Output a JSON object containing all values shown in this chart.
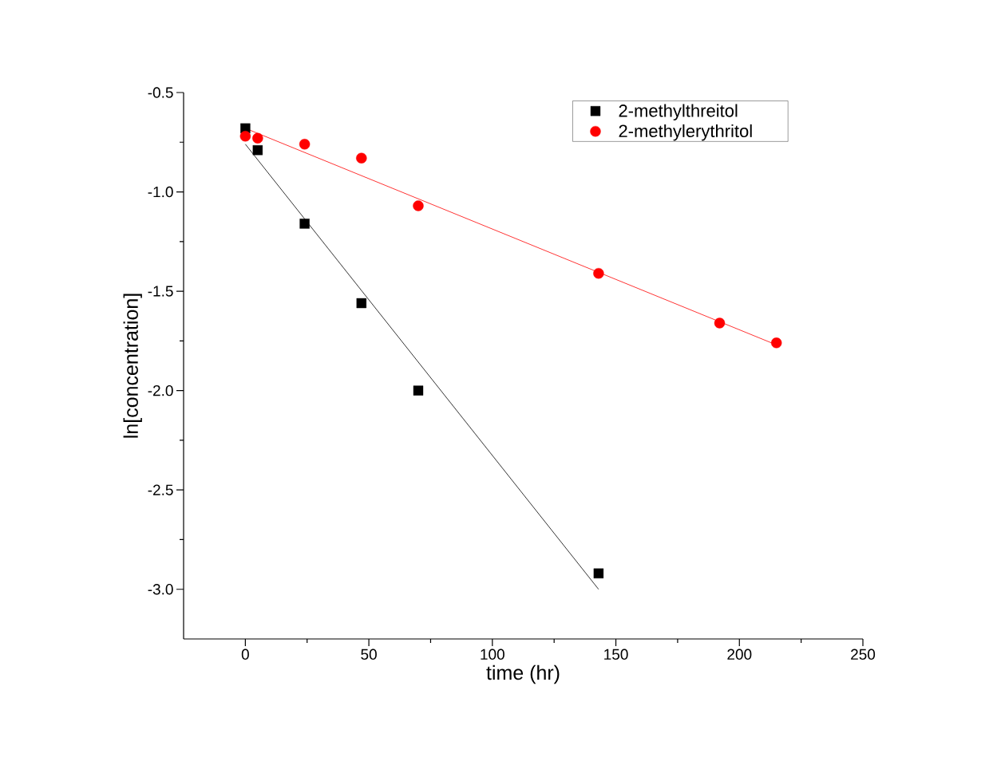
{
  "chart_data": {
    "type": "scatter",
    "xlabel": "time (hr)",
    "ylabel": "ln[concentration]",
    "xlim": [
      -25,
      250
    ],
    "ylim": [
      -3.25,
      -0.5
    ],
    "xticks": [
      0,
      50,
      100,
      150,
      200,
      250
    ],
    "yticks": [
      {
        "value": -3.0,
        "label": "-3.0"
      },
      -2.5,
      {
        "value": -2.0,
        "label": "-2.0"
      },
      -1.5,
      {
        "value": -1.0,
        "label": "-1.0"
      },
      -0.5
    ],
    "legend": "top right",
    "grid": false,
    "series": [
      {
        "name": "2-methylthreitol",
        "color": "#000000",
        "marker": "square",
        "x": [
          0,
          5,
          24,
          47,
          70,
          143
        ],
        "values": [
          -0.68,
          -0.79,
          -1.16,
          -1.56,
          -2.0,
          -2.92
        ]
      },
      {
        "name": "2-methylerythritol",
        "color": "#ff0000",
        "marker": "circle",
        "x": [
          0,
          5,
          24,
          47,
          70,
          143,
          192,
          215
        ],
        "values": [
          -0.72,
          -0.73,
          -0.76,
          -0.83,
          -1.07,
          -1.41,
          -1.66,
          -1.76
        ]
      },
      {
        "type": "line",
        "color": "#000000",
        "marker": "none",
        "x": [
          0,
          143
        ],
        "values": [
          -0.76,
          -3.0
        ]
      },
      {
        "type": "line",
        "color": "#ff0000",
        "marker": "none",
        "x": [
          0,
          215
        ],
        "values": [
          -0.68,
          -1.77
        ]
      }
    ]
  }
}
